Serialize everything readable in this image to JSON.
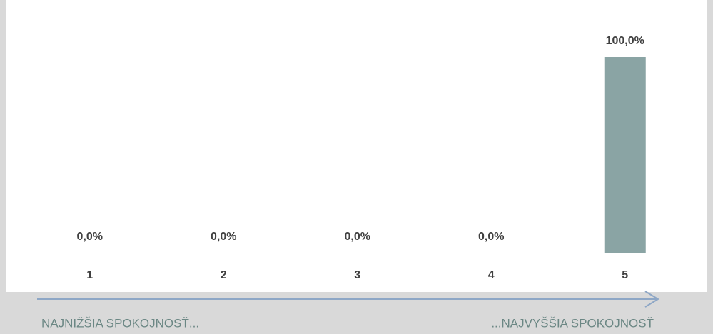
{
  "chart_data": {
    "type": "bar",
    "categories": [
      "1",
      "2",
      "3",
      "4",
      "5"
    ],
    "values": [
      0,
      0,
      0,
      0,
      100
    ],
    "value_labels": [
      "0,0%",
      "0,0%",
      "0,0%",
      "0,0%",
      "100,0%"
    ],
    "color": "#8aa4a4",
    "annotations": [
      "NAJNIŽŠIA SPOKOJNOSŤ...",
      "...NAJVYŠŠIA SPOKOJNOSŤ"
    ]
  }
}
